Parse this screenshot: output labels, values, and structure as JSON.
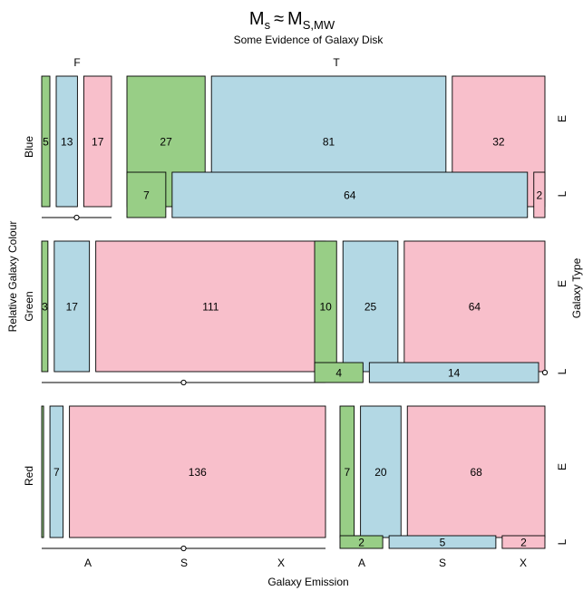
{
  "chart_data": {
    "type": "mosaic",
    "title_main": "M",
    "title_main_sub": "s",
    "title_approx": "≈",
    "title_rhs": "M",
    "title_rhs_sub": "S,MW",
    "subtitle": "Some Evidence of Galaxy Disk",
    "xlabel": "Galaxy Emission",
    "ylabel": "Relative Galaxy Colour",
    "right_label": "Galaxy Type",
    "disk_levels": [
      "F",
      "T"
    ],
    "colour_levels": [
      "Blue",
      "Green",
      "Red"
    ],
    "type_levels": [
      "E",
      "L"
    ],
    "emission_levels": [
      "A",
      "S",
      "X"
    ],
    "colors": {
      "A": "#98CE86",
      "S": "#B3D8E4",
      "X": "#F8BFCB"
    },
    "cells": [
      {
        "colour": "Blue",
        "disk": "F",
        "type": "E",
        "emission": "A",
        "value": 5
      },
      {
        "colour": "Blue",
        "disk": "F",
        "type": "E",
        "emission": "S",
        "value": 13
      },
      {
        "colour": "Blue",
        "disk": "F",
        "type": "E",
        "emission": "X",
        "value": 17
      },
      {
        "colour": "Blue",
        "disk": "F",
        "type": "L",
        "emission": "A",
        "value": 0
      },
      {
        "colour": "Blue",
        "disk": "F",
        "type": "L",
        "emission": "S",
        "value": 0
      },
      {
        "colour": "Blue",
        "disk": "F",
        "type": "L",
        "emission": "X",
        "value": 0
      },
      {
        "colour": "Blue",
        "disk": "T",
        "type": "E",
        "emission": "A",
        "value": 27
      },
      {
        "colour": "Blue",
        "disk": "T",
        "type": "E",
        "emission": "S",
        "value": 81
      },
      {
        "colour": "Blue",
        "disk": "T",
        "type": "E",
        "emission": "X",
        "value": 32
      },
      {
        "colour": "Blue",
        "disk": "T",
        "type": "L",
        "emission": "A",
        "value": 7
      },
      {
        "colour": "Blue",
        "disk": "T",
        "type": "L",
        "emission": "S",
        "value": 64
      },
      {
        "colour": "Blue",
        "disk": "T",
        "type": "L",
        "emission": "X",
        "value": 2
      },
      {
        "colour": "Green",
        "disk": "F",
        "type": "E",
        "emission": "A",
        "value": 3
      },
      {
        "colour": "Green",
        "disk": "F",
        "type": "E",
        "emission": "S",
        "value": 17
      },
      {
        "colour": "Green",
        "disk": "F",
        "type": "E",
        "emission": "X",
        "value": 111
      },
      {
        "colour": "Green",
        "disk": "F",
        "type": "L",
        "emission": "A",
        "value": 0
      },
      {
        "colour": "Green",
        "disk": "F",
        "type": "L",
        "emission": "S",
        "value": 0
      },
      {
        "colour": "Green",
        "disk": "F",
        "type": "L",
        "emission": "X",
        "value": 0
      },
      {
        "colour": "Green",
        "disk": "T",
        "type": "E",
        "emission": "A",
        "value": 10
      },
      {
        "colour": "Green",
        "disk": "T",
        "type": "E",
        "emission": "S",
        "value": 25
      },
      {
        "colour": "Green",
        "disk": "T",
        "type": "E",
        "emission": "X",
        "value": 64
      },
      {
        "colour": "Green",
        "disk": "T",
        "type": "L",
        "emission": "A",
        "value": 4
      },
      {
        "colour": "Green",
        "disk": "T",
        "type": "L",
        "emission": "S",
        "value": 14
      },
      {
        "colour": "Green",
        "disk": "T",
        "type": "L",
        "emission": "X",
        "value": 0
      },
      {
        "colour": "Red",
        "disk": "F",
        "type": "E",
        "emission": "A",
        "value": 1
      },
      {
        "colour": "Red",
        "disk": "F",
        "type": "E",
        "emission": "S",
        "value": 7
      },
      {
        "colour": "Red",
        "disk": "F",
        "type": "E",
        "emission": "X",
        "value": 136
      },
      {
        "colour": "Red",
        "disk": "F",
        "type": "L",
        "emission": "A",
        "value": 0
      },
      {
        "colour": "Red",
        "disk": "F",
        "type": "L",
        "emission": "S",
        "value": 0
      },
      {
        "colour": "Red",
        "disk": "F",
        "type": "L",
        "emission": "X",
        "value": 0
      },
      {
        "colour": "Red",
        "disk": "T",
        "type": "E",
        "emission": "A",
        "value": 7
      },
      {
        "colour": "Red",
        "disk": "T",
        "type": "E",
        "emission": "S",
        "value": 20
      },
      {
        "colour": "Red",
        "disk": "T",
        "type": "E",
        "emission": "X",
        "value": 68
      },
      {
        "colour": "Red",
        "disk": "T",
        "type": "L",
        "emission": "A",
        "value": 2
      },
      {
        "colour": "Red",
        "disk": "T",
        "type": "L",
        "emission": "S",
        "value": 5
      },
      {
        "colour": "Red",
        "disk": "T",
        "type": "L",
        "emission": "X",
        "value": 2
      }
    ]
  }
}
